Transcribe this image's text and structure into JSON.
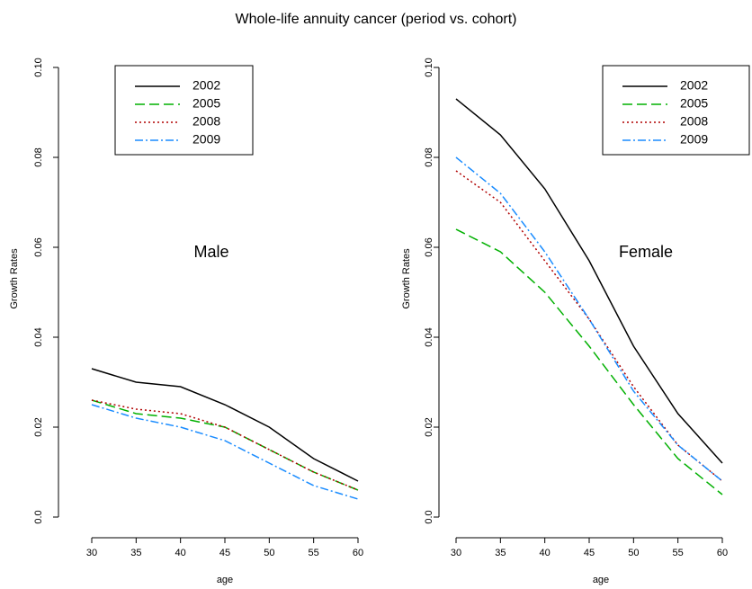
{
  "title": "Whole-life annuity cancer (period vs. cohort)",
  "chart_data": [
    {
      "type": "line",
      "annotation": "Male",
      "x_label": "age",
      "y_label": "Growth Rates",
      "x": [
        30,
        35,
        40,
        45,
        50,
        55,
        60
      ],
      "series": [
        {
          "name": "2002",
          "color": "#000000",
          "values": [
            0.033,
            0.03,
            0.029,
            0.025,
            0.02,
            0.013,
            0.008
          ]
        },
        {
          "name": "2005",
          "color": "#00b000",
          "values": [
            0.026,
            0.023,
            0.022,
            0.02,
            0.015,
            0.01,
            0.006
          ]
        },
        {
          "name": "2008",
          "color": "#b00000",
          "values": [
            0.026,
            0.024,
            0.023,
            0.02,
            0.015,
            0.01,
            0.006
          ]
        },
        {
          "name": "2009",
          "color": "#1a8cff",
          "values": [
            0.025,
            0.022,
            0.02,
            0.017,
            0.012,
            0.007,
            0.004
          ]
        }
      ],
      "xlim": [
        30,
        60
      ],
      "xticks": [
        30,
        35,
        40,
        45,
        50,
        55,
        60
      ],
      "ylim": [
        0,
        0.1
      ],
      "yticks": [
        {
          "value": 0,
          "label": "0.0"
        },
        0.02,
        0.04,
        0.06,
        0.08,
        {
          "value": 0.1,
          "label": "0.10"
        }
      ],
      "legend": "top-left"
    },
    {
      "type": "line",
      "annotation": "Female",
      "x_label": "age",
      "y_label": "Growth Rates",
      "x": [
        30,
        35,
        40,
        45,
        50,
        55,
        60
      ],
      "series": [
        {
          "name": "2002",
          "color": "#000000",
          "values": [
            0.093,
            0.085,
            0.073,
            0.057,
            0.038,
            0.023,
            0.012
          ]
        },
        {
          "name": "2005",
          "color": "#00b000",
          "values": [
            0.064,
            0.059,
            0.05,
            0.038,
            0.025,
            0.013,
            0.005
          ]
        },
        {
          "name": "2008",
          "color": "#b00000",
          "values": [
            0.077,
            0.07,
            0.057,
            0.044,
            0.029,
            0.016,
            0.008
          ]
        },
        {
          "name": "2009",
          "color": "#1a8cff",
          "values": [
            0.08,
            0.072,
            0.059,
            0.044,
            0.028,
            0.016,
            0.008
          ]
        }
      ],
      "xlim": [
        30,
        60
      ],
      "xticks": [
        30,
        35,
        40,
        45,
        50,
        55,
        60
      ],
      "ylim": [
        0,
        0.1
      ],
      "yticks": [
        {
          "value": 0,
          "label": "0.0"
        },
        0.02,
        0.04,
        0.06,
        0.08,
        {
          "value": 0.1,
          "label": "0.10"
        }
      ],
      "legend": "top-right"
    }
  ]
}
